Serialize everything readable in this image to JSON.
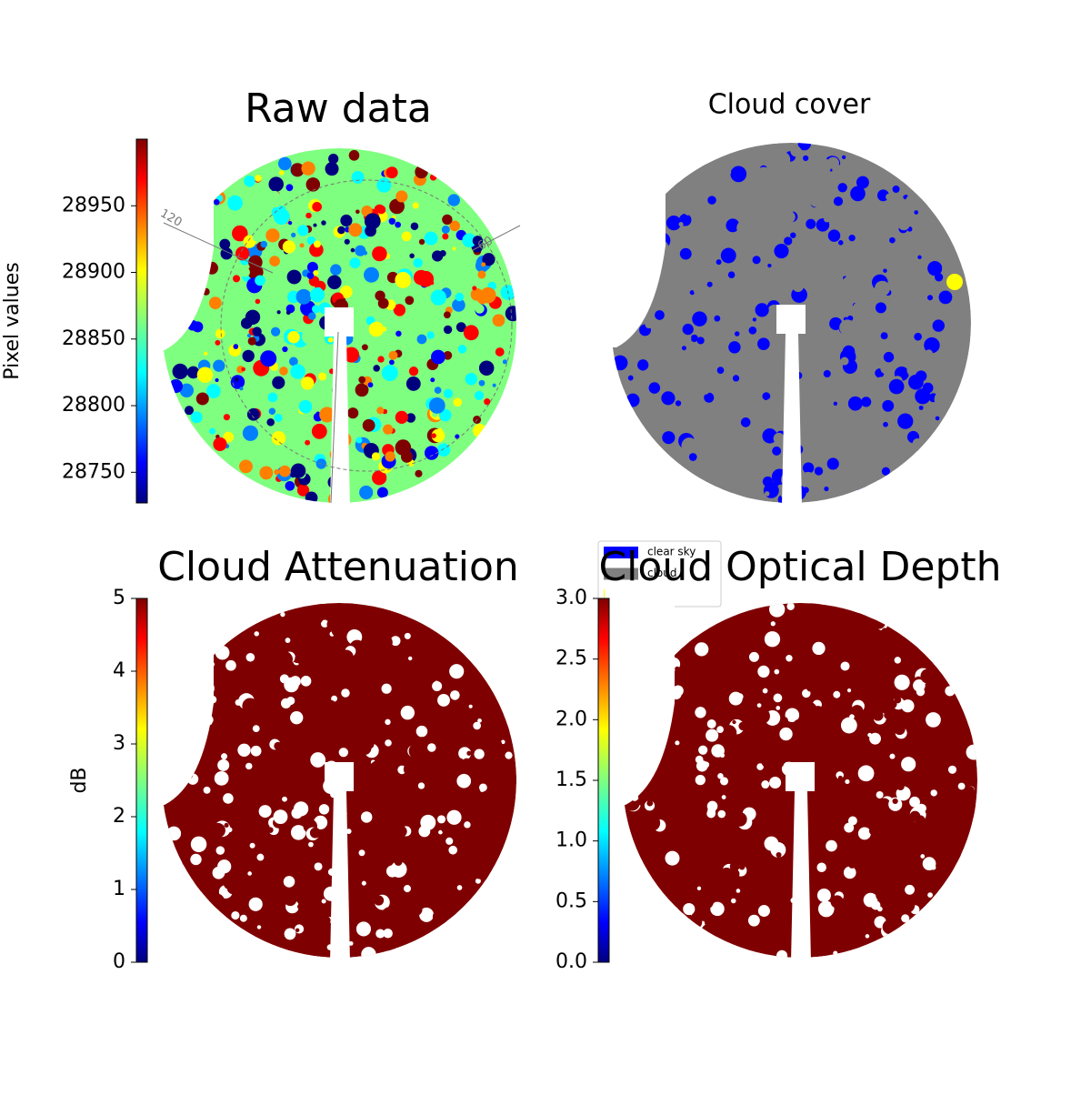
{
  "chart_data": [
    {
      "type": "image",
      "title": "Raw data",
      "colormap": "jet",
      "colorbar_label": "Pixel values",
      "ylim": [
        28727,
        29000
      ],
      "yticks": [
        28750,
        28800,
        28850,
        28900,
        28950
      ],
      "annotations": [
        "120",
        "60"
      ]
    },
    {
      "type": "categorical-image",
      "title": "Cloud cover",
      "categories": [
        "clear sky",
        "cloud",
        "sun"
      ],
      "colors": [
        "#0000ff",
        "#808080",
        "#ffff00"
      ]
    },
    {
      "type": "image",
      "title": "Cloud Attenuation",
      "colormap": "jet",
      "colorbar_label": "dB",
      "ylim": [
        0,
        5
      ],
      "yticks": [
        0,
        1,
        2,
        3,
        4,
        5
      ]
    },
    {
      "type": "image",
      "title": "Cloud Optical Depth",
      "colormap": "jet",
      "ylim": [
        0,
        3
      ],
      "yticks": [
        {
          "value": 0,
          "label": "0.0"
        },
        {
          "value": 0.5,
          "label": "0.5"
        },
        {
          "value": 1,
          "label": "1.0"
        },
        {
          "value": 1.5,
          "label": "1.5"
        },
        {
          "value": 2,
          "label": "2.0"
        },
        {
          "value": 2.5,
          "label": "2.5"
        },
        {
          "value": 3,
          "label": "3.0"
        }
      ]
    }
  ]
}
